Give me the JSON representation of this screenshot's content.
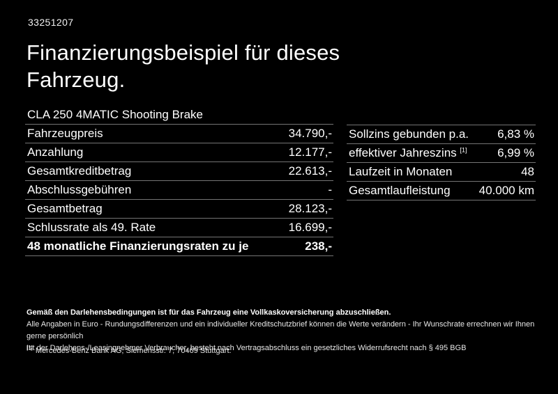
{
  "colors": {
    "background": "#000000",
    "text": "#ffffff",
    "divider": "#757575"
  },
  "header": {
    "doc_id": "33251207",
    "title_line1": "Finanzierungsbeispiel für dieses",
    "title_line2": "Fahrzeug."
  },
  "finance_table": {
    "model": "CLA 250 4MATIC Shooting Brake",
    "rows": [
      {
        "label": "Fahrzeugpreis",
        "value": "34.790,-"
      },
      {
        "label": "Anzahlung",
        "value": "12.177,-"
      },
      {
        "label": "Gesamtkreditbetrag",
        "value": "22.613,-"
      },
      {
        "label": "Abschlussgebühren",
        "value": "-"
      },
      {
        "label": "Gesamtbetrag",
        "value": "28.123,-"
      },
      {
        "label": "Schlussrate als 49. Rate",
        "value": "16.699,-"
      },
      {
        "label": "48 monatliche Finanzierungsraten zu je",
        "value": "238,-"
      }
    ]
  },
  "conditions_table": {
    "rows": [
      {
        "label": "Sollzins gebunden p.a.",
        "marker": "",
        "value": "6,83 %"
      },
      {
        "label": "effektiver Jahreszins",
        "marker": "[1]",
        "value": "6,99 %"
      },
      {
        "label": "Laufzeit in Monaten",
        "marker": "",
        "value": "48"
      },
      {
        "label": "Gesamtlaufleistung",
        "marker": "",
        "value": "40.000 km"
      }
    ]
  },
  "footer": {
    "note1": "Gemäß den Darlehensbedingungen ist für das Fahrzeug eine Vollkaskoversicherung abzuschließen.",
    "note2": "Alle Angaben in Euro - Rundungsdifferenzen und ein individueller Kreditschutzbrief können die Werte verändern - Ihr Wunschrate errechnen wir Ihnen gerne persönlich",
    "note3": "Ist der Darlehens-/Leasingnehmer Verbraucher, besteht nach Vertragsabschluss ein gesetzliches Widerrufsrecht nach § 495 BGB",
    "footnote_marker": "[1]",
    "footnote_text": "Mercedes-Benz Bank AG, Siemensstr. 7, 70469 Stuttgart."
  }
}
